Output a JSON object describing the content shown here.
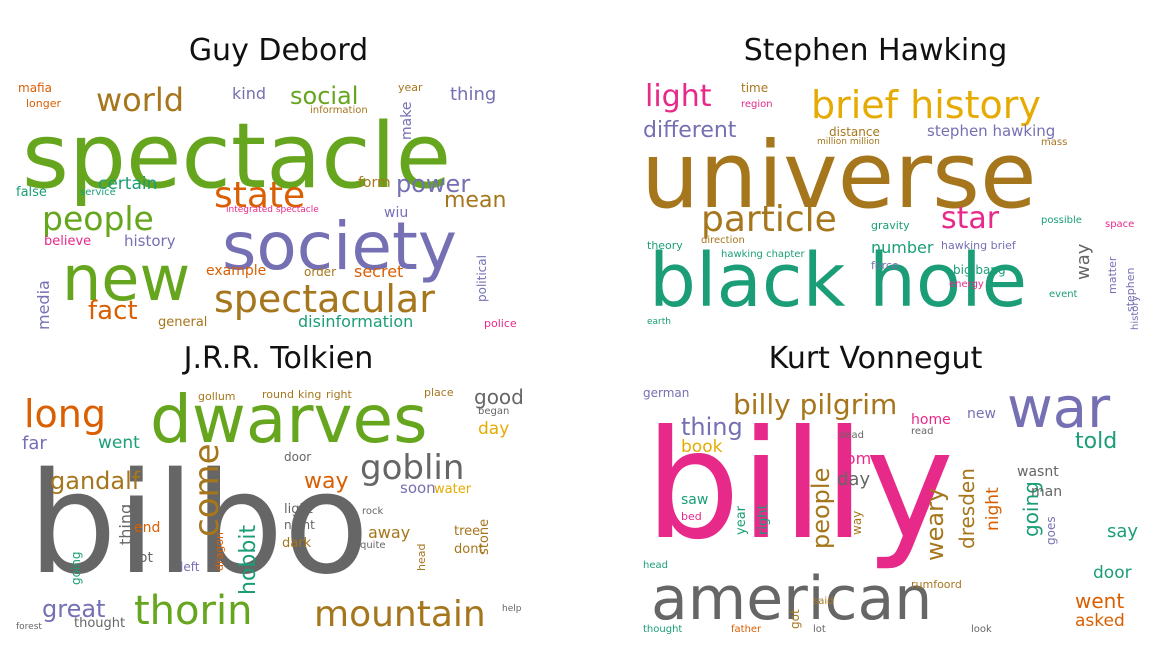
{
  "palette": {
    "green": "#66a61e",
    "orange": "#d95f02",
    "purple": "#7570b3",
    "pink": "#e7298a",
    "gold": "#a6761d",
    "teal": "#1b9e77",
    "gray": "#666666",
    "yellow": "#e6ab02"
  },
  "panels": [
    {
      "id": "debord",
      "title": "Guy Debord",
      "words": [
        {
          "text": "spectacle",
          "color": "green"
        },
        {
          "text": "society",
          "color": "purple"
        },
        {
          "text": "new",
          "color": "green"
        },
        {
          "text": "spectacular",
          "color": "gold"
        },
        {
          "text": "state",
          "color": "orange"
        },
        {
          "text": "people",
          "color": "green"
        },
        {
          "text": "world",
          "color": "gold"
        },
        {
          "text": "social",
          "color": "green"
        },
        {
          "text": "power",
          "color": "purple"
        },
        {
          "text": "mean",
          "color": "gold"
        },
        {
          "text": "fact",
          "color": "orange"
        },
        {
          "text": "media",
          "color": "purple"
        },
        {
          "text": "secret",
          "color": "orange"
        },
        {
          "text": "disinformation",
          "color": "teal"
        },
        {
          "text": "certain",
          "color": "teal"
        },
        {
          "text": "history",
          "color": "purple"
        },
        {
          "text": "example",
          "color": "orange"
        },
        {
          "text": "kind",
          "color": "purple"
        },
        {
          "text": "thing",
          "color": "purple"
        },
        {
          "text": "mafia",
          "color": "orange"
        },
        {
          "text": "false",
          "color": "teal"
        },
        {
          "text": "believe",
          "color": "pink"
        },
        {
          "text": "form",
          "color": "gold"
        },
        {
          "text": "make",
          "color": "purple"
        },
        {
          "text": "information",
          "color": "gold"
        },
        {
          "text": "political",
          "color": "purple"
        },
        {
          "text": "general",
          "color": "gold"
        },
        {
          "text": "order",
          "color": "gold"
        },
        {
          "text": "longer",
          "color": "orange"
        },
        {
          "text": "service",
          "color": "teal"
        },
        {
          "text": "police",
          "color": "pink"
        },
        {
          "text": "year",
          "color": "gold"
        },
        {
          "text": "wiu",
          "color": "purple"
        },
        {
          "text": "integrated spectacle",
          "color": "pink"
        }
      ]
    },
    {
      "id": "hawking",
      "title": "Stephen Hawking",
      "words": [
        {
          "text": "universe",
          "color": "gold"
        },
        {
          "text": "black hole",
          "color": "teal"
        },
        {
          "text": "brief history",
          "color": "yellow"
        },
        {
          "text": "particle",
          "color": "gold"
        },
        {
          "text": "star",
          "color": "pink"
        },
        {
          "text": "light",
          "color": "pink"
        },
        {
          "text": "different",
          "color": "purple"
        },
        {
          "text": "stephen hawking",
          "color": "purple"
        },
        {
          "text": "number",
          "color": "teal"
        },
        {
          "text": "way",
          "color": "gray"
        },
        {
          "text": "time",
          "color": "gold"
        },
        {
          "text": "theory",
          "color": "teal"
        },
        {
          "text": "force",
          "color": "purple"
        },
        {
          "text": "energy",
          "color": "pink"
        },
        {
          "text": "hawking brief",
          "color": "purple"
        },
        {
          "text": "hawking chapter",
          "color": "teal"
        },
        {
          "text": "big bang",
          "color": "teal"
        },
        {
          "text": "distance",
          "color": "gold"
        },
        {
          "text": "gravity",
          "color": "teal"
        },
        {
          "text": "mass",
          "color": "gold"
        },
        {
          "text": "event",
          "color": "teal"
        },
        {
          "text": "space",
          "color": "pink"
        },
        {
          "text": "direction",
          "color": "gold"
        },
        {
          "text": "million million",
          "color": "gold"
        },
        {
          "text": "possible",
          "color": "teal"
        },
        {
          "text": "matter",
          "color": "purple"
        },
        {
          "text": "region",
          "color": "pink"
        },
        {
          "text": "stephen",
          "color": "purple"
        },
        {
          "text": "history",
          "color": "purple"
        },
        {
          "text": "earth",
          "color": "teal"
        }
      ]
    },
    {
      "id": "tolkien",
      "title": "J.R.R. Tolkien",
      "words": [
        {
          "text": "bilbo",
          "color": "gray"
        },
        {
          "text": "dwarves",
          "color": "green"
        },
        {
          "text": "thorin",
          "color": "green"
        },
        {
          "text": "mountain",
          "color": "gold"
        },
        {
          "text": "long",
          "color": "orange"
        },
        {
          "text": "goblin",
          "color": "gray"
        },
        {
          "text": "come",
          "color": "gold"
        },
        {
          "text": "gandalf",
          "color": "gold"
        },
        {
          "text": "great",
          "color": "purple"
        },
        {
          "text": "hobbit",
          "color": "teal"
        },
        {
          "text": "way",
          "color": "orange"
        },
        {
          "text": "good",
          "color": "gray"
        },
        {
          "text": "day",
          "color": "yellow"
        },
        {
          "text": "went",
          "color": "teal"
        },
        {
          "text": "far",
          "color": "purple"
        },
        {
          "text": "thing",
          "color": "gray"
        },
        {
          "text": "soon",
          "color": "purple"
        },
        {
          "text": "water",
          "color": "yellow"
        },
        {
          "text": "light",
          "color": "gray"
        },
        {
          "text": "night",
          "color": "gray"
        },
        {
          "text": "dark",
          "color": "gold"
        },
        {
          "text": "away",
          "color": "gold"
        },
        {
          "text": "stone",
          "color": "gold"
        },
        {
          "text": "tree",
          "color": "gold"
        },
        {
          "text": "dont",
          "color": "gold"
        },
        {
          "text": "end",
          "color": "orange"
        },
        {
          "text": "got",
          "color": "gray"
        },
        {
          "text": "left",
          "color": "purple"
        },
        {
          "text": "going",
          "color": "teal"
        },
        {
          "text": "thought",
          "color": "gray"
        },
        {
          "text": "door",
          "color": "gray"
        },
        {
          "text": "dragon",
          "color": "orange"
        },
        {
          "text": "gollum",
          "color": "gold"
        },
        {
          "text": "round",
          "color": "gold"
        },
        {
          "text": "king",
          "color": "gold"
        },
        {
          "text": "right",
          "color": "gold"
        },
        {
          "text": "head",
          "color": "gold"
        },
        {
          "text": "place",
          "color": "gold"
        },
        {
          "text": "began",
          "color": "gray"
        },
        {
          "text": "forest",
          "color": "gray"
        },
        {
          "text": "help",
          "color": "gray"
        },
        {
          "text": "rock",
          "color": "gray"
        },
        {
          "text": "quite",
          "color": "gray"
        }
      ]
    },
    {
      "id": "vonnegut",
      "title": "Kurt Vonnegut",
      "words": [
        {
          "text": "billy",
          "color": "pink"
        },
        {
          "text": "american",
          "color": "gray"
        },
        {
          "text": "war",
          "color": "purple"
        },
        {
          "text": "billy pilgrim",
          "color": "gold"
        },
        {
          "text": "thing",
          "color": "purple"
        },
        {
          "text": "people",
          "color": "gold"
        },
        {
          "text": "told",
          "color": "teal"
        },
        {
          "text": "dresden",
          "color": "gold"
        },
        {
          "text": "weary",
          "color": "gold"
        },
        {
          "text": "going",
          "color": "teal"
        },
        {
          "text": "night",
          "color": "orange"
        },
        {
          "text": "went",
          "color": "orange"
        },
        {
          "text": "say",
          "color": "teal"
        },
        {
          "text": "door",
          "color": "teal"
        },
        {
          "text": "asked",
          "color": "orange"
        },
        {
          "text": "book",
          "color": "yellow"
        },
        {
          "text": "come",
          "color": "pink"
        },
        {
          "text": "day",
          "color": "gray"
        },
        {
          "text": "home",
          "color": "pink"
        },
        {
          "text": "new",
          "color": "purple"
        },
        {
          "text": "wasnt",
          "color": "gray"
        },
        {
          "text": "man",
          "color": "gray"
        },
        {
          "text": "saw",
          "color": "teal"
        },
        {
          "text": "year",
          "color": "teal"
        },
        {
          "text": "right",
          "color": "teal"
        },
        {
          "text": "german",
          "color": "purple"
        },
        {
          "text": "goes",
          "color": "purple"
        },
        {
          "text": "got",
          "color": "gold"
        },
        {
          "text": "way",
          "color": "gold"
        },
        {
          "text": "rumfoord",
          "color": "gold"
        },
        {
          "text": "look",
          "color": "gray"
        },
        {
          "text": "thought",
          "color": "teal"
        },
        {
          "text": "father",
          "color": "orange"
        },
        {
          "text": "head",
          "color": "teal"
        },
        {
          "text": "bed",
          "color": "pink"
        },
        {
          "text": "said",
          "color": "gold"
        },
        {
          "text": "dead",
          "color": "gray"
        },
        {
          "text": "read",
          "color": "gray"
        },
        {
          "text": "lot",
          "color": "gray"
        }
      ]
    }
  ]
}
